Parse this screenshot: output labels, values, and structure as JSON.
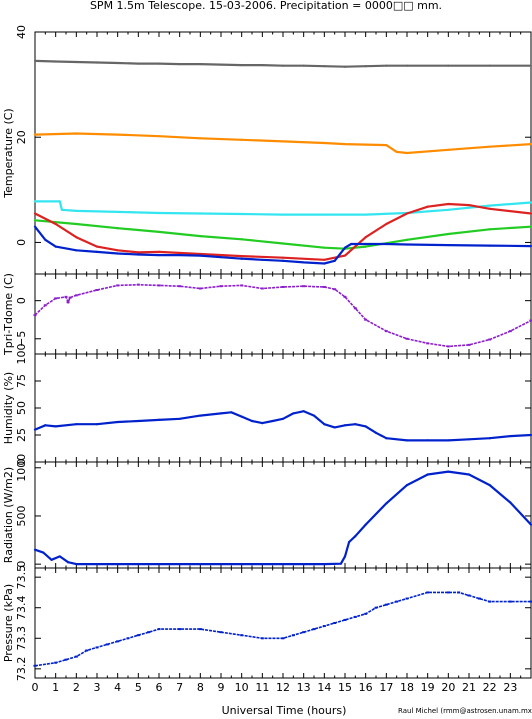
{
  "title": "SPM 1.5m Telescope. 15-03-2006. Precipitation = 0000□□ mm.",
  "xlabel": "Universal Time (hours)",
  "credit": "Raul Michel (rmm@astrosen.unam.mx)",
  "x_ticks": [
    "0",
    "1",
    "2",
    "3",
    "4",
    "5",
    "6",
    "7",
    "8",
    "9",
    "10",
    "11",
    "12",
    "13",
    "14",
    "15",
    "16",
    "17",
    "18",
    "19",
    "20",
    "21",
    "22",
    "23"
  ],
  "panels": [
    {
      "ylabel": "Temperature (C)",
      "ticks": [
        {
          "v": 0,
          "label": "0"
        },
        {
          "v": 20,
          "label": "20"
        },
        {
          "v": 40,
          "label": "40"
        }
      ]
    },
    {
      "ylabel": "Tpri-Tdome (C)",
      "ticks": [
        {
          "v": -5,
          "label": "−5"
        },
        {
          "v": 0,
          "label": "0"
        }
      ]
    },
    {
      "ylabel": "Humidity (%)",
      "ticks": [
        {
          "v": 0,
          "label": "0"
        },
        {
          "v": 25,
          "label": "25"
        },
        {
          "v": 50,
          "label": "50"
        },
        {
          "v": 75,
          "label": "75"
        },
        {
          "v": 100,
          "label": "100"
        }
      ]
    },
    {
      "ylabel": "Radiation (W/m2)",
      "ticks": [
        {
          "v": 0,
          "label": "0"
        },
        {
          "v": 500,
          "label": "500"
        },
        {
          "v": 1000,
          "label": "1000"
        }
      ]
    },
    {
      "ylabel": "Pressure (kPa)",
      "ticks": [
        {
          "v": 73.2,
          "label": "73.2"
        },
        {
          "v": 73.3,
          "label": "73.3"
        },
        {
          "v": 73.4,
          "label": "73.4"
        },
        {
          "v": 73.5,
          "label": "73.5"
        }
      ]
    }
  ],
  "chart_data": [
    {
      "type": "line",
      "title": "SPM 1.5m Telescope. 15-03-2006. Precipitation = 0000□□ mm.",
      "xlabel": "",
      "ylabel": "Temperature (C)",
      "xlim": [
        0,
        24
      ],
      "ylim": [
        -6,
        40
      ],
      "grid": false,
      "series": [
        {
          "color": "#666666",
          "x": [
            0,
            1,
            2,
            3,
            4,
            5,
            6,
            7,
            8,
            9,
            10,
            11,
            12,
            13,
            14,
            15,
            16,
            17,
            18,
            20,
            22,
            24
          ],
          "y": [
            34.5,
            34.4,
            34.3,
            34.2,
            34.1,
            34.0,
            34.0,
            33.9,
            33.9,
            33.8,
            33.7,
            33.7,
            33.6,
            33.6,
            33.5,
            33.4,
            33.5,
            33.6,
            33.6,
            33.6,
            33.6,
            33.6
          ]
        },
        {
          "color": "#ff8c00",
          "x": [
            0,
            2,
            4,
            6,
            8,
            10,
            12,
            14,
            15,
            16,
            17,
            17.5,
            18,
            20,
            22,
            24
          ],
          "y": [
            20.5,
            20.7,
            20.5,
            20.2,
            19.8,
            19.5,
            19.2,
            18.9,
            18.7,
            18.6,
            18.5,
            17.2,
            17.0,
            17.6,
            18.2,
            18.7
          ]
        },
        {
          "color": "#33e5f0",
          "x": [
            0,
            1.2,
            1.3,
            2,
            4,
            6,
            8,
            10,
            12,
            14,
            16,
            18,
            20,
            22,
            24
          ],
          "y": [
            7.8,
            7.8,
            6.2,
            6.0,
            5.8,
            5.6,
            5.5,
            5.4,
            5.3,
            5.3,
            5.3,
            5.6,
            6.2,
            7.0,
            7.6
          ]
        },
        {
          "color": "#22cc22",
          "x": [
            0,
            2,
            4,
            6,
            8,
            10,
            12,
            14,
            15,
            16,
            18,
            20,
            22,
            24
          ],
          "y": [
            4.2,
            3.5,
            2.7,
            2.0,
            1.2,
            0.6,
            -0.2,
            -1.0,
            -1.2,
            -0.8,
            0.5,
            1.6,
            2.5,
            3.0
          ]
        },
        {
          "color": "#dd2222",
          "x": [
            0,
            1,
            2,
            3,
            4,
            5,
            6,
            8,
            10,
            12,
            14,
            15,
            16,
            17,
            18,
            19,
            20,
            21,
            22,
            24
          ],
          "y": [
            5.5,
            3.5,
            1.0,
            -0.8,
            -1.5,
            -1.9,
            -1.8,
            -2.2,
            -2.6,
            -2.9,
            -3.3,
            -2.5,
            1.0,
            3.5,
            5.5,
            6.8,
            7.3,
            7.1,
            6.4,
            5.5
          ]
        },
        {
          "color": "#0022cc",
          "x": [
            0,
            0.5,
            1,
            2,
            3,
            4,
            5,
            6,
            7,
            8,
            9,
            10,
            11,
            12,
            13,
            14,
            14.5,
            15,
            15.3,
            16,
            17,
            18,
            20,
            22,
            24
          ],
          "y": [
            3.0,
            0.5,
            -0.8,
            -1.5,
            -1.8,
            -2.1,
            -2.3,
            -2.4,
            -2.4,
            -2.5,
            -2.8,
            -3.1,
            -3.3,
            -3.5,
            -3.8,
            -4.0,
            -3.5,
            -1.0,
            -0.3,
            -0.3,
            -0.3,
            -0.4,
            -0.5,
            -0.6,
            -0.7
          ]
        }
      ]
    },
    {
      "type": "scatter",
      "xlabel": "",
      "ylabel": "Tpri-Tdome (C)",
      "xlim": [
        0,
        24
      ],
      "ylim": [
        -7,
        3.5
      ],
      "grid": false,
      "series": [
        {
          "color": "#8c1fcc",
          "x": [
            0,
            0.5,
            1,
            1.5,
            1.6,
            1.7,
            2,
            3,
            4,
            5,
            6,
            7,
            8,
            9,
            10,
            11,
            12,
            13,
            14,
            14.5,
            15,
            15.5,
            16,
            17,
            18,
            19,
            20,
            21,
            22,
            23,
            24
          ],
          "y": [
            -1.9,
            -0.6,
            0.3,
            0.5,
            -0.2,
            0.4,
            0.7,
            1.4,
            2.0,
            2.1,
            2.0,
            1.9,
            1.6,
            1.9,
            2.0,
            1.6,
            1.8,
            1.9,
            1.8,
            1.5,
            0.5,
            -1.0,
            -2.5,
            -4.0,
            -5.0,
            -5.6,
            -6.0,
            -5.8,
            -5.1,
            -4.0,
            -2.6
          ]
        }
      ]
    },
    {
      "type": "line",
      "xlabel": "",
      "ylabel": "Humidity (%)",
      "xlim": [
        0,
        24
      ],
      "ylim": [
        0,
        100
      ],
      "grid": false,
      "series": [
        {
          "color": "#0022cc",
          "x": [
            0,
            0.5,
            1,
            2,
            3,
            4,
            5,
            6,
            7,
            8,
            9,
            9.5,
            10,
            10.5,
            11,
            11.5,
            12,
            12.5,
            13,
            13.5,
            14,
            14.5,
            15,
            15.5,
            16,
            16.5,
            17,
            18,
            19,
            20,
            21,
            22,
            23,
            24
          ],
          "y": [
            30,
            34,
            33,
            35,
            35,
            37,
            38,
            39,
            40,
            43,
            45,
            46,
            42,
            38,
            36,
            38,
            40,
            45,
            47,
            43,
            35,
            32,
            34,
            35,
            33,
            27,
            22,
            20,
            20,
            20,
            21,
            22,
            24,
            25
          ]
        }
      ]
    },
    {
      "type": "line",
      "xlabel": "",
      "ylabel": "Radiation (W/m2)",
      "xlim": [
        0,
        24
      ],
      "ylim": [
        -40,
        1060
      ],
      "grid": false,
      "series": [
        {
          "color": "#0022cc",
          "x": [
            0,
            0.4,
            0.8,
            1.2,
            1.6,
            2,
            4,
            6,
            8,
            10,
            12,
            14,
            14.8,
            15,
            15.2,
            15.5,
            16,
            17,
            18,
            19,
            20,
            21,
            22,
            23,
            24
          ],
          "y": [
            150,
            120,
            45,
            80,
            20,
            0,
            0,
            0,
            0,
            0,
            0,
            0,
            5,
            80,
            230,
            290,
            410,
            630,
            820,
            930,
            960,
            930,
            820,
            640,
            410
          ]
        }
      ]
    },
    {
      "type": "scatter",
      "xlabel": "Universal Time (hours)",
      "ylabel": "Pressure (kPa)",
      "xlim": [
        0,
        24
      ],
      "ylim": [
        73.17,
        73.53
      ],
      "grid": false,
      "series": [
        {
          "color": "#0022cc",
          "x": [
            0,
            1,
            1.5,
            2,
            2.5,
            3,
            3.5,
            4,
            4.5,
            5,
            5.5,
            6,
            7,
            8,
            9,
            10,
            11,
            12,
            12.5,
            13,
            13.5,
            14,
            14.5,
            15,
            15.5,
            16,
            16.5,
            17,
            17.5,
            18,
            19,
            20,
            20.5,
            21,
            21.5,
            22,
            23,
            24
          ],
          "y": [
            73.21,
            73.22,
            73.23,
            73.24,
            73.26,
            73.27,
            73.28,
            73.29,
            73.3,
            73.31,
            73.32,
            73.33,
            73.33,
            73.33,
            73.32,
            73.31,
            73.3,
            73.3,
            73.31,
            73.32,
            73.33,
            73.34,
            73.35,
            73.36,
            73.37,
            73.38,
            73.4,
            73.41,
            73.42,
            73.43,
            73.45,
            73.45,
            73.45,
            73.44,
            73.43,
            73.42,
            73.42,
            73.42
          ]
        }
      ]
    }
  ]
}
